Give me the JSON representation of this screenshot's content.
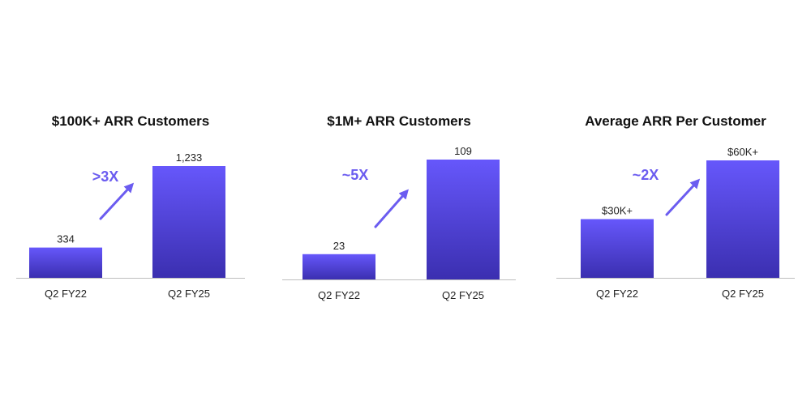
{
  "colors": {
    "bar_top": "#6657fb",
    "bar_bottom": "#3b2fb0",
    "arrow": "#6b5cf0",
    "axis": "#bdbdbd"
  },
  "chart_data": [
    {
      "type": "bar",
      "title": "$100K+ ARR Customers",
      "categories": [
        "Q2 FY22",
        "Q2 FY25"
      ],
      "values": [
        334,
        1233
      ],
      "value_labels": [
        "334",
        "1,233"
      ],
      "annotation": ">3X",
      "ylim": [
        0,
        1233
      ],
      "xlabel": "",
      "ylabel": "",
      "grid": false,
      "legend": "none"
    },
    {
      "type": "bar",
      "title": "$1M+ ARR Customers",
      "categories": [
        "Q2 FY22",
        "Q2 FY25"
      ],
      "values": [
        23,
        109
      ],
      "value_labels": [
        "23",
        "109"
      ],
      "annotation": "~5X",
      "ylim": [
        0,
        109
      ],
      "xlabel": "",
      "ylabel": "",
      "grid": false,
      "legend": "none"
    },
    {
      "type": "bar",
      "title": "Average ARR Per Customer",
      "categories": [
        "Q2 FY22",
        "Q2 FY25"
      ],
      "values": [
        30,
        60
      ],
      "value_labels": [
        "$30K+",
        "$60K+"
      ],
      "annotation": "~2X",
      "ylim": [
        0,
        60
      ],
      "xlabel": "",
      "ylabel": "",
      "grid": false,
      "legend": "none"
    }
  ]
}
